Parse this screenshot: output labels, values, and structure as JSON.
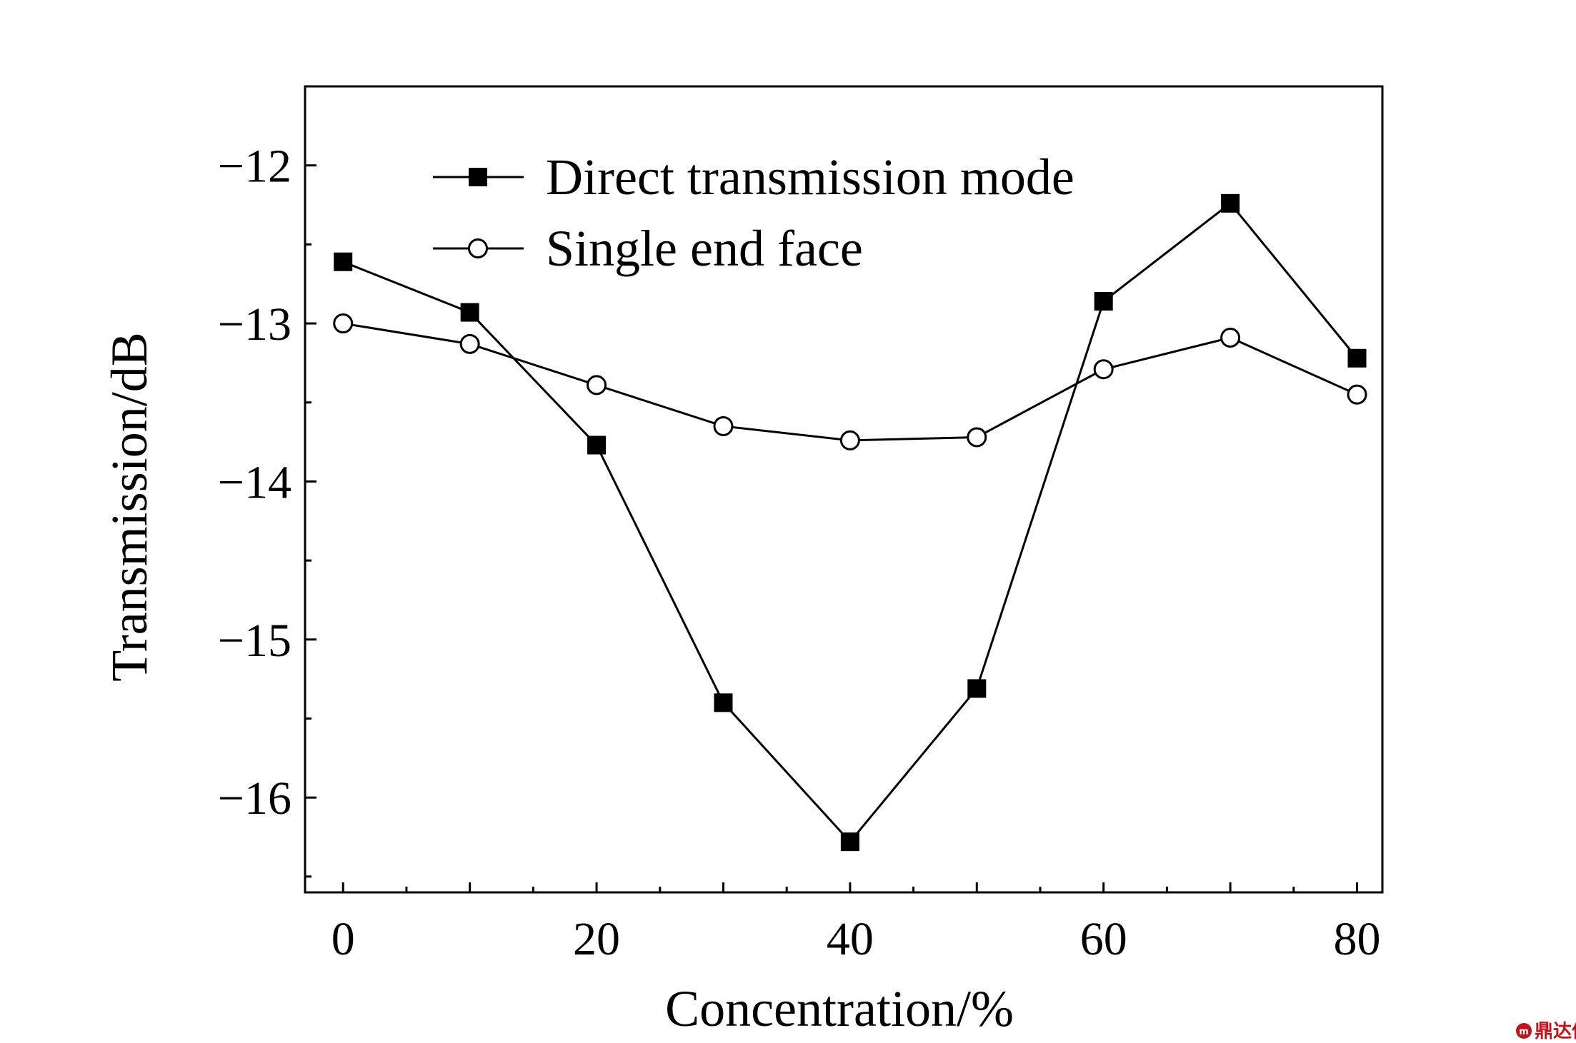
{
  "chart_data": {
    "type": "line",
    "title": "",
    "xlabel": "Concentration/%",
    "ylabel": "Transmission/dB",
    "xlim": [
      -3,
      82
    ],
    "ylim": [
      -16.6,
      -11.5
    ],
    "xticks": [
      0,
      20,
      40,
      60,
      80
    ],
    "xtick_labels": [
      "0",
      "20",
      "40",
      "60",
      "80"
    ],
    "yticks": [
      -12,
      -13,
      -14,
      -15,
      -16
    ],
    "ytick_labels": [
      "−12",
      "−13",
      "−14",
      "−15",
      "−16"
    ],
    "x": [
      0,
      10,
      20,
      30,
      40,
      50,
      60,
      70,
      80
    ],
    "series": [
      {
        "name": "Direct transmission mode",
        "marker": "filled-square",
        "values": [
          -12.61,
          -12.93,
          -13.77,
          -15.4,
          -16.28,
          -15.31,
          -12.86,
          -12.24,
          -13.22
        ]
      },
      {
        "name": "Single end face",
        "marker": "open-circle",
        "values": [
          -13.0,
          -13.13,
          -13.39,
          -13.65,
          -13.74,
          -13.72,
          -13.29,
          -13.09,
          -13.45
        ]
      }
    ],
    "grid": false,
    "legend_position": "top-center"
  },
  "watermark": {
    "text": "鼎达信"
  }
}
